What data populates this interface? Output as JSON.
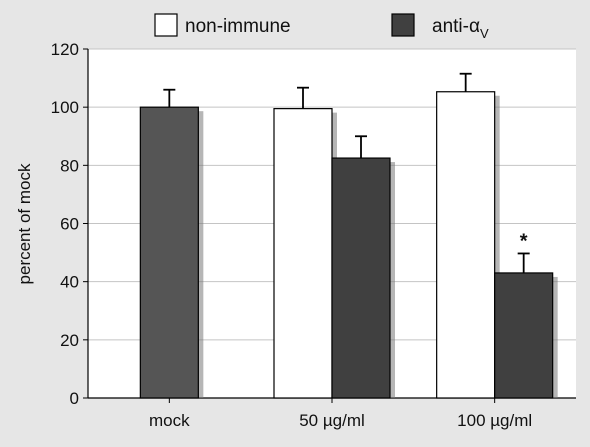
{
  "chart_data": {
    "type": "bar",
    "categories": [
      "mock",
      "50 µg/ml",
      "100 µg/ml"
    ],
    "ylabel": "percent of mock",
    "ylim": [
      0,
      120
    ],
    "yticks": [
      0,
      20,
      40,
      60,
      80,
      100,
      120
    ],
    "grid": true,
    "legend_position": "top",
    "series": [
      {
        "name": "mock",
        "color": "#555555",
        "values": [
          100,
          null,
          null
        ],
        "errors": [
          6,
          null,
          null
        ]
      },
      {
        "name": "non-immune",
        "color": "#ffffff",
        "values": [
          null,
          99.5,
          105.3
        ],
        "errors": [
          null,
          7.2,
          6.2
        ]
      },
      {
        "name": "anti-α",
        "name_subscript": "V",
        "color": "#404040",
        "values": [
          null,
          82.5,
          43
        ],
        "errors": [
          null,
          7.5,
          6.7
        ]
      }
    ],
    "annotations": [
      {
        "text": "*",
        "series": "anti-α",
        "category": "100 µg/ml"
      }
    ]
  },
  "legend": [
    {
      "label": "non-immune",
      "color": "#ffffff"
    },
    {
      "label": "anti-α",
      "subscript": "V",
      "color": "#404040"
    }
  ]
}
